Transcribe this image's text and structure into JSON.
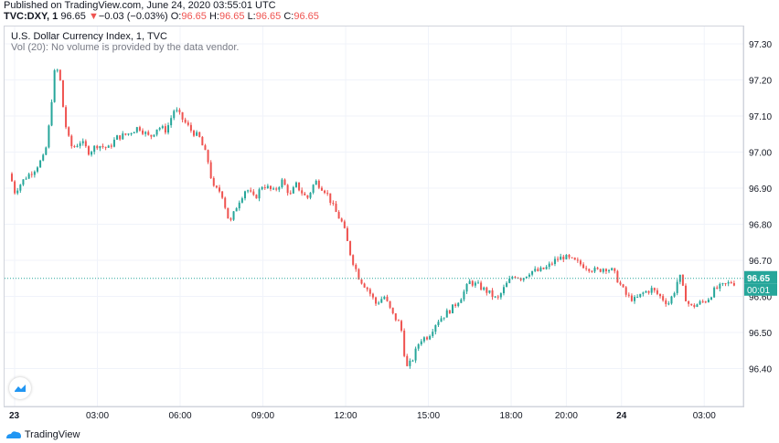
{
  "published_line": "Published on TradingView.com, June 24, 2020 03:55:01 UTC",
  "symbol_line": {
    "symbol": "TVC:DXY, 1",
    "last": "96.65",
    "change_arrow": "▼",
    "change": "−0.03 (−0.03%)",
    "o_label": "O:",
    "o_value": "96.65",
    "h_label": "H:",
    "h_value": "96.65",
    "l_label": "L:",
    "l_value": "96.65",
    "c_label": "C:",
    "c_value": "96.65"
  },
  "legend": {
    "title": "U.S. Dollar Currency Index, 1, TVC",
    "volume_note": "Vol (20): No volume is provided by the data vendor."
  },
  "footer": {
    "brand": "TradingView"
  },
  "colors": {
    "up": "#26a69a",
    "down": "#ef5350",
    "grid": "#f0f3fa",
    "last_line": "#26a69a",
    "tag": "#26a69a"
  },
  "chart_data": {
    "type": "candlestick",
    "title": "U.S. Dollar Currency Index, 1, TVC",
    "ylim": [
      96.3,
      97.35
    ],
    "y_ticks": [
      "97.30",
      "97.20",
      "97.10",
      "97.00",
      "96.90",
      "96.80",
      "96.70",
      "96.60",
      "96.50",
      "96.40"
    ],
    "x_ticks": [
      {
        "label": "23",
        "hour": 0,
        "bold": true
      },
      {
        "label": "03:00",
        "hour": 3
      },
      {
        "label": "06:00",
        "hour": 6
      },
      {
        "label": "09:00",
        "hour": 9
      },
      {
        "label": "12:00",
        "hour": 12
      },
      {
        "label": "15:00",
        "hour": 15
      },
      {
        "label": "18:00",
        "hour": 18
      },
      {
        "label": "20:00",
        "hour": 20
      },
      {
        "label": "24",
        "hour": 22,
        "bold": true
      },
      {
        "label": "03:00",
        "hour": 25
      }
    ],
    "last_price": "96.65",
    "last_value": 96.65,
    "countdown": "00:01",
    "price_path": [
      [
        -0.1,
        96.94
      ],
      [
        0.0,
        96.92
      ],
      [
        0.1,
        96.89
      ],
      [
        0.3,
        96.91
      ],
      [
        0.5,
        96.93
      ],
      [
        0.8,
        96.95
      ],
      [
        1.0,
        96.97
      ],
      [
        1.2,
        96.99
      ],
      [
        1.4,
        97.1
      ],
      [
        1.5,
        97.2
      ],
      [
        1.6,
        97.24
      ],
      [
        1.75,
        97.2
      ],
      [
        1.85,
        97.13
      ],
      [
        2.0,
        97.05
      ],
      [
        2.2,
        97.01
      ],
      [
        2.5,
        97.03
      ],
      [
        2.8,
        97.0
      ],
      [
        3.1,
        97.02
      ],
      [
        3.5,
        97.01
      ],
      [
        3.8,
        97.04
      ],
      [
        4.2,
        97.05
      ],
      [
        4.6,
        97.07
      ],
      [
        5.0,
        97.04
      ],
      [
        5.3,
        97.07
      ],
      [
        5.6,
        97.06
      ],
      [
        5.9,
        97.12
      ],
      [
        6.2,
        97.09
      ],
      [
        6.5,
        97.06
      ],
      [
        6.8,
        97.04
      ],
      [
        7.1,
        96.98
      ],
      [
        7.3,
        96.9
      ],
      [
        7.6,
        96.89
      ],
      [
        7.9,
        96.8
      ],
      [
        8.2,
        96.86
      ],
      [
        8.5,
        96.9
      ],
      [
        8.8,
        96.87
      ],
      [
        9.1,
        96.91
      ],
      [
        9.5,
        96.89
      ],
      [
        9.8,
        96.92
      ],
      [
        10.1,
        96.88
      ],
      [
        10.3,
        96.91
      ],
      [
        10.7,
        96.87
      ],
      [
        11.0,
        96.92
      ],
      [
        11.4,
        96.89
      ],
      [
        11.7,
        96.84
      ],
      [
        12.0,
        96.8
      ],
      [
        12.3,
        96.71
      ],
      [
        12.6,
        96.65
      ],
      [
        12.9,
        96.62
      ],
      [
        13.2,
        96.58
      ],
      [
        13.5,
        96.6
      ],
      [
        13.8,
        96.55
      ],
      [
        14.1,
        96.52
      ],
      [
        14.3,
        96.4
      ],
      [
        14.5,
        96.42
      ],
      [
        14.8,
        96.48
      ],
      [
        15.1,
        96.49
      ],
      [
        15.4,
        96.53
      ],
      [
        15.7,
        96.55
      ],
      [
        16.0,
        96.57
      ],
      [
        16.3,
        96.6
      ],
      [
        16.6,
        96.64
      ],
      [
        16.9,
        96.63
      ],
      [
        17.3,
        96.61
      ],
      [
        17.6,
        96.59
      ],
      [
        17.9,
        96.63
      ],
      [
        18.2,
        96.66
      ],
      [
        18.5,
        96.65
      ],
      [
        18.8,
        96.67
      ],
      [
        19.1,
        96.67
      ],
      [
        19.4,
        96.68
      ],
      [
        19.7,
        96.7
      ],
      [
        20.0,
        96.71
      ],
      [
        20.3,
        96.7
      ],
      [
        20.6,
        96.69
      ],
      [
        20.9,
        96.68
      ],
      [
        21.2,
        96.67
      ],
      [
        21.5,
        96.68
      ],
      [
        21.8,
        96.67
      ],
      [
        22.0,
        96.64
      ],
      [
        22.3,
        96.6
      ],
      [
        22.6,
        96.59
      ],
      [
        22.9,
        96.61
      ],
      [
        23.2,
        96.62
      ],
      [
        23.5,
        96.6
      ],
      [
        23.8,
        96.58
      ],
      [
        24.0,
        96.61
      ],
      [
        24.2,
        96.66
      ],
      [
        24.4,
        96.6
      ],
      [
        24.6,
        96.57
      ],
      [
        24.9,
        96.58
      ],
      [
        25.2,
        96.59
      ],
      [
        25.5,
        96.62
      ],
      [
        25.8,
        96.63
      ],
      [
        26.1,
        96.64
      ],
      [
        26.4,
        96.63
      ],
      [
        26.7,
        96.65
      ]
    ]
  }
}
